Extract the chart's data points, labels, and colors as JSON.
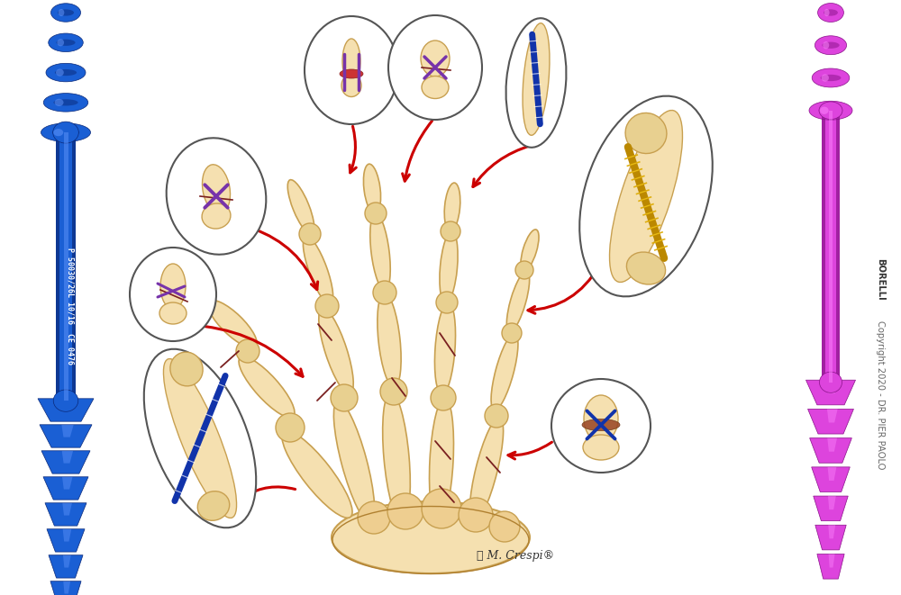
{
  "background_color": "#ffffff",
  "blue_nail_color": "#1a5fd4",
  "blue_nail_dark": "#0a2878",
  "blue_nail_mid": "#2255cc",
  "blue_nail_highlight": "#6699ff",
  "pink_nail_color": "#dd44dd",
  "pink_nail_dark": "#881188",
  "pink_nail_mid": "#cc33cc",
  "pink_nail_highlight": "#ff88ff",
  "blue_nail_text": "P 50030/26L 10/16  CE 0476",
  "copyright_text": "Copyright 2020 - DR. PIER PAOLO ",
  "copyright_bold": "BORELLI",
  "signature": "Ⓜ M. Crespi®",
  "bone_fill": "#f5e0b0",
  "bone_fill2": "#eece90",
  "bone_edge": "#c8a050",
  "bone_edge2": "#b08030",
  "joint_fill": "#e8d090",
  "fracture_col": "#7a2020",
  "arrow_col": "#cc0000",
  "circle_edge": "#444444",
  "purple_wire": "#7733aa",
  "blue_wire": "#1133aa",
  "brown_wrap": "#994422",
  "gold_screw": "#cc9900",
  "figsize": [
    10.0,
    6.61
  ],
  "dpi": 100
}
